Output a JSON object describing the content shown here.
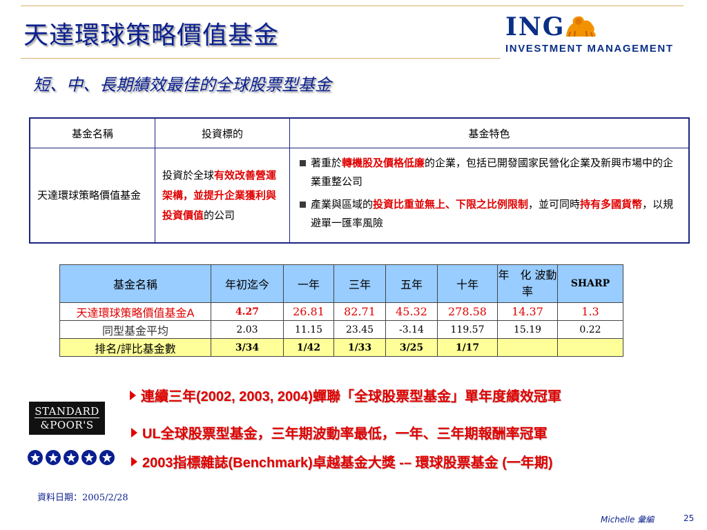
{
  "title": "天達環球策略價值基金",
  "subtitle": "短、中、長期績效最佳的全球股票型基金",
  "logo": {
    "brand": "ING",
    "tagline": "INVESTMENT MANAGEMENT",
    "icon": "lion-icon"
  },
  "fund_table": {
    "headers": [
      "基金名稱",
      "投資標的",
      "基金特色"
    ],
    "fund_name": "天達環球策略價值基金",
    "target": {
      "pre": "投資於全球",
      "red": "有效改善營運架構，並提升企業獲利與投資價值",
      "post": "的公司"
    },
    "features": [
      {
        "pre": "著重於",
        "red": "轉機股及價格低廉",
        "post": "的企業，包括已開發國家民營化企業及新興市場中的企業重整公司"
      },
      {
        "pre": "產業與區域的",
        "red": "投資比重並無上、下限之比例限制",
        "mid": "，並可同時",
        "red2": "持有多國貨幣",
        "post": "，以規避單一匯率風險"
      }
    ]
  },
  "perf_table": {
    "headers": [
      "基金名稱",
      "年初迄今",
      "一年",
      "三年",
      "五年",
      "十年",
      "年　化 波動率",
      "SHARP"
    ],
    "rows": [
      {
        "label": "天達環球策略價值基金A",
        "values": [
          "4.27",
          "26.81",
          "82.71",
          "45.32",
          "278.58",
          "14.37",
          "1.3"
        ]
      },
      {
        "label": "同型基金平均",
        "values": [
          "2.03",
          "11.15",
          "23.45",
          "-3.14",
          "119.57",
          "15.19",
          "0.22"
        ]
      },
      {
        "label": "排名/評比基金數",
        "values": [
          "3/34",
          "1/42",
          "1/33",
          "3/25",
          "1/17",
          "",
          ""
        ]
      }
    ]
  },
  "awards": [
    "連續三年(2002, 2003, 2004)蟬聯「全球股票型基金」單年度績效冠軍",
    "UL全球股票型基金，三年期波動率最低，一年、三年期報酬率冠軍",
    "2003指標雜誌(Benchmark)卓越基金大獎 -– 環球股票基金 (一年期)"
  ],
  "sp_logo": {
    "line1": "STANDARD",
    "line2": "&POOR'S"
  },
  "rating_stars": 5,
  "data_date": "資料日期：2005/2/28",
  "footer": {
    "author": "Michelle 彙編",
    "page": "25"
  },
  "colors": {
    "title_blue": "#0a1f8f",
    "accent_red": "#e00000",
    "header_blue": "#99ccff",
    "rank_yellow": "#ffff99"
  }
}
